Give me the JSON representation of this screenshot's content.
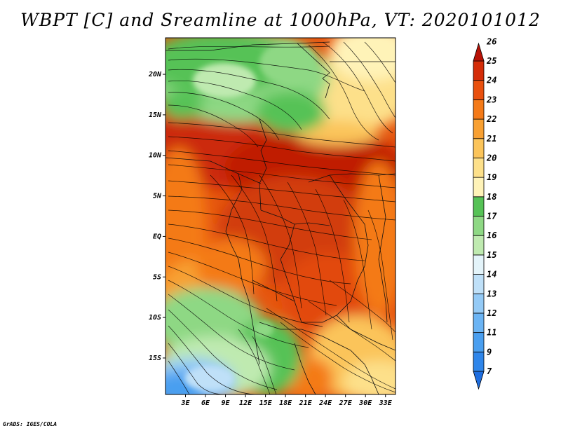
{
  "title": "WBPT [C] and Sreamline at 1000hPa, VT: 2020101012",
  "credit": "GrADS: IGES/COLA",
  "map": {
    "lon_labels": [
      "3E",
      "6E",
      "9E",
      "12E",
      "15E",
      "18E",
      "21E",
      "24E",
      "27E",
      "30E",
      "33E"
    ],
    "lat_labels": [
      "20N",
      "15N",
      "10N",
      "5N",
      "EQ",
      "5S",
      "10S",
      "15S"
    ],
    "lon_range": [
      0,
      34.5
    ],
    "lat_range": [
      -19.5,
      24.5
    ]
  },
  "colorbar": {
    "labels": [
      "7",
      "9",
      "11",
      "12",
      "13",
      "14",
      "15",
      "16",
      "17",
      "18",
      "19",
      "20",
      "21",
      "22",
      "23",
      "24",
      "25",
      "26"
    ],
    "colors": [
      "#1e6ee0",
      "#2f86ea",
      "#4a9ff0",
      "#6bb4f4",
      "#94caf6",
      "#bfe0f8",
      "#e4f4fa",
      "#bfeab0",
      "#8ed884",
      "#56c256",
      "#fff3b8",
      "#fde08a",
      "#fbc45a",
      "#f8a032",
      "#f47a18",
      "#e9500e",
      "#d42c08",
      "#b81206"
    ]
  }
}
